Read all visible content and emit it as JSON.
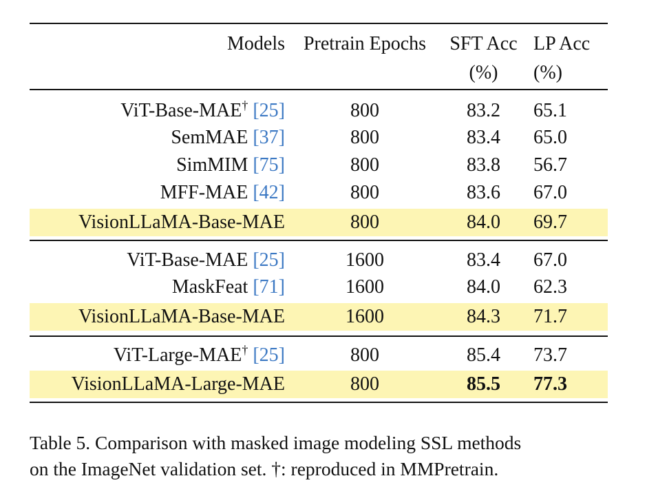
{
  "table": {
    "headers": {
      "models": "Models",
      "epochs": "Pretrain Epochs",
      "sft_line1": "SFT Acc",
      "sft_line2": "(%)",
      "lp_line1": "LP Acc",
      "lp_line2": "(%)"
    },
    "rows": [
      {
        "model": "ViT-Base-MAE",
        "dagger": "†",
        "cite": "[25]",
        "epochs": "800",
        "sft": "83.2",
        "lp": "65.1",
        "highlight": false,
        "bold": false
      },
      {
        "model": "SemMAE",
        "dagger": "",
        "cite": "[37]",
        "epochs": "800",
        "sft": "83.4",
        "lp": "65.0",
        "highlight": false,
        "bold": false
      },
      {
        "model": "SimMIM",
        "dagger": "",
        "cite": "[75]",
        "epochs": "800",
        "sft": "83.8",
        "lp": "56.7",
        "highlight": false,
        "bold": false
      },
      {
        "model": "MFF-MAE",
        "dagger": "",
        "cite": "[42]",
        "epochs": "800",
        "sft": "83.6",
        "lp": "67.0",
        "highlight": false,
        "bold": false
      },
      {
        "model": "VisionLLaMA-Base-MAE",
        "dagger": "",
        "cite": "",
        "epochs": "800",
        "sft": "84.0",
        "lp": "69.7",
        "highlight": true,
        "bold": false
      },
      {
        "model": "ViT-Base-MAE",
        "dagger": "",
        "cite": "[25]",
        "epochs": "1600",
        "sft": "83.4",
        "lp": "67.0",
        "highlight": false,
        "bold": false
      },
      {
        "model": "MaskFeat",
        "dagger": "",
        "cite": "[71]",
        "epochs": "1600",
        "sft": "84.0",
        "lp": "62.3",
        "highlight": false,
        "bold": false
      },
      {
        "model": "VisionLLaMA-Base-MAE",
        "dagger": "",
        "cite": "",
        "epochs": "1600",
        "sft": "84.3",
        "lp": "71.7",
        "highlight": true,
        "bold": false
      },
      {
        "model": "ViT-Large-MAE",
        "dagger": "†",
        "cite": "[25]",
        "epochs": "800",
        "sft": "85.4",
        "lp": "73.7",
        "highlight": false,
        "bold": false
      },
      {
        "model": "VisionLLaMA-Large-MAE",
        "dagger": "",
        "cite": "",
        "epochs": "800",
        "sft": "85.5",
        "lp": "77.3",
        "highlight": true,
        "bold": true
      }
    ]
  },
  "caption": {
    "line1": "Table 5. Comparison with masked image modeling SSL methods",
    "line2": "on the ImageNet validation set. †: reproduced in MMPretrain."
  },
  "colors": {
    "highlight": "#fdf5b4",
    "citation": "#3b78c3"
  }
}
